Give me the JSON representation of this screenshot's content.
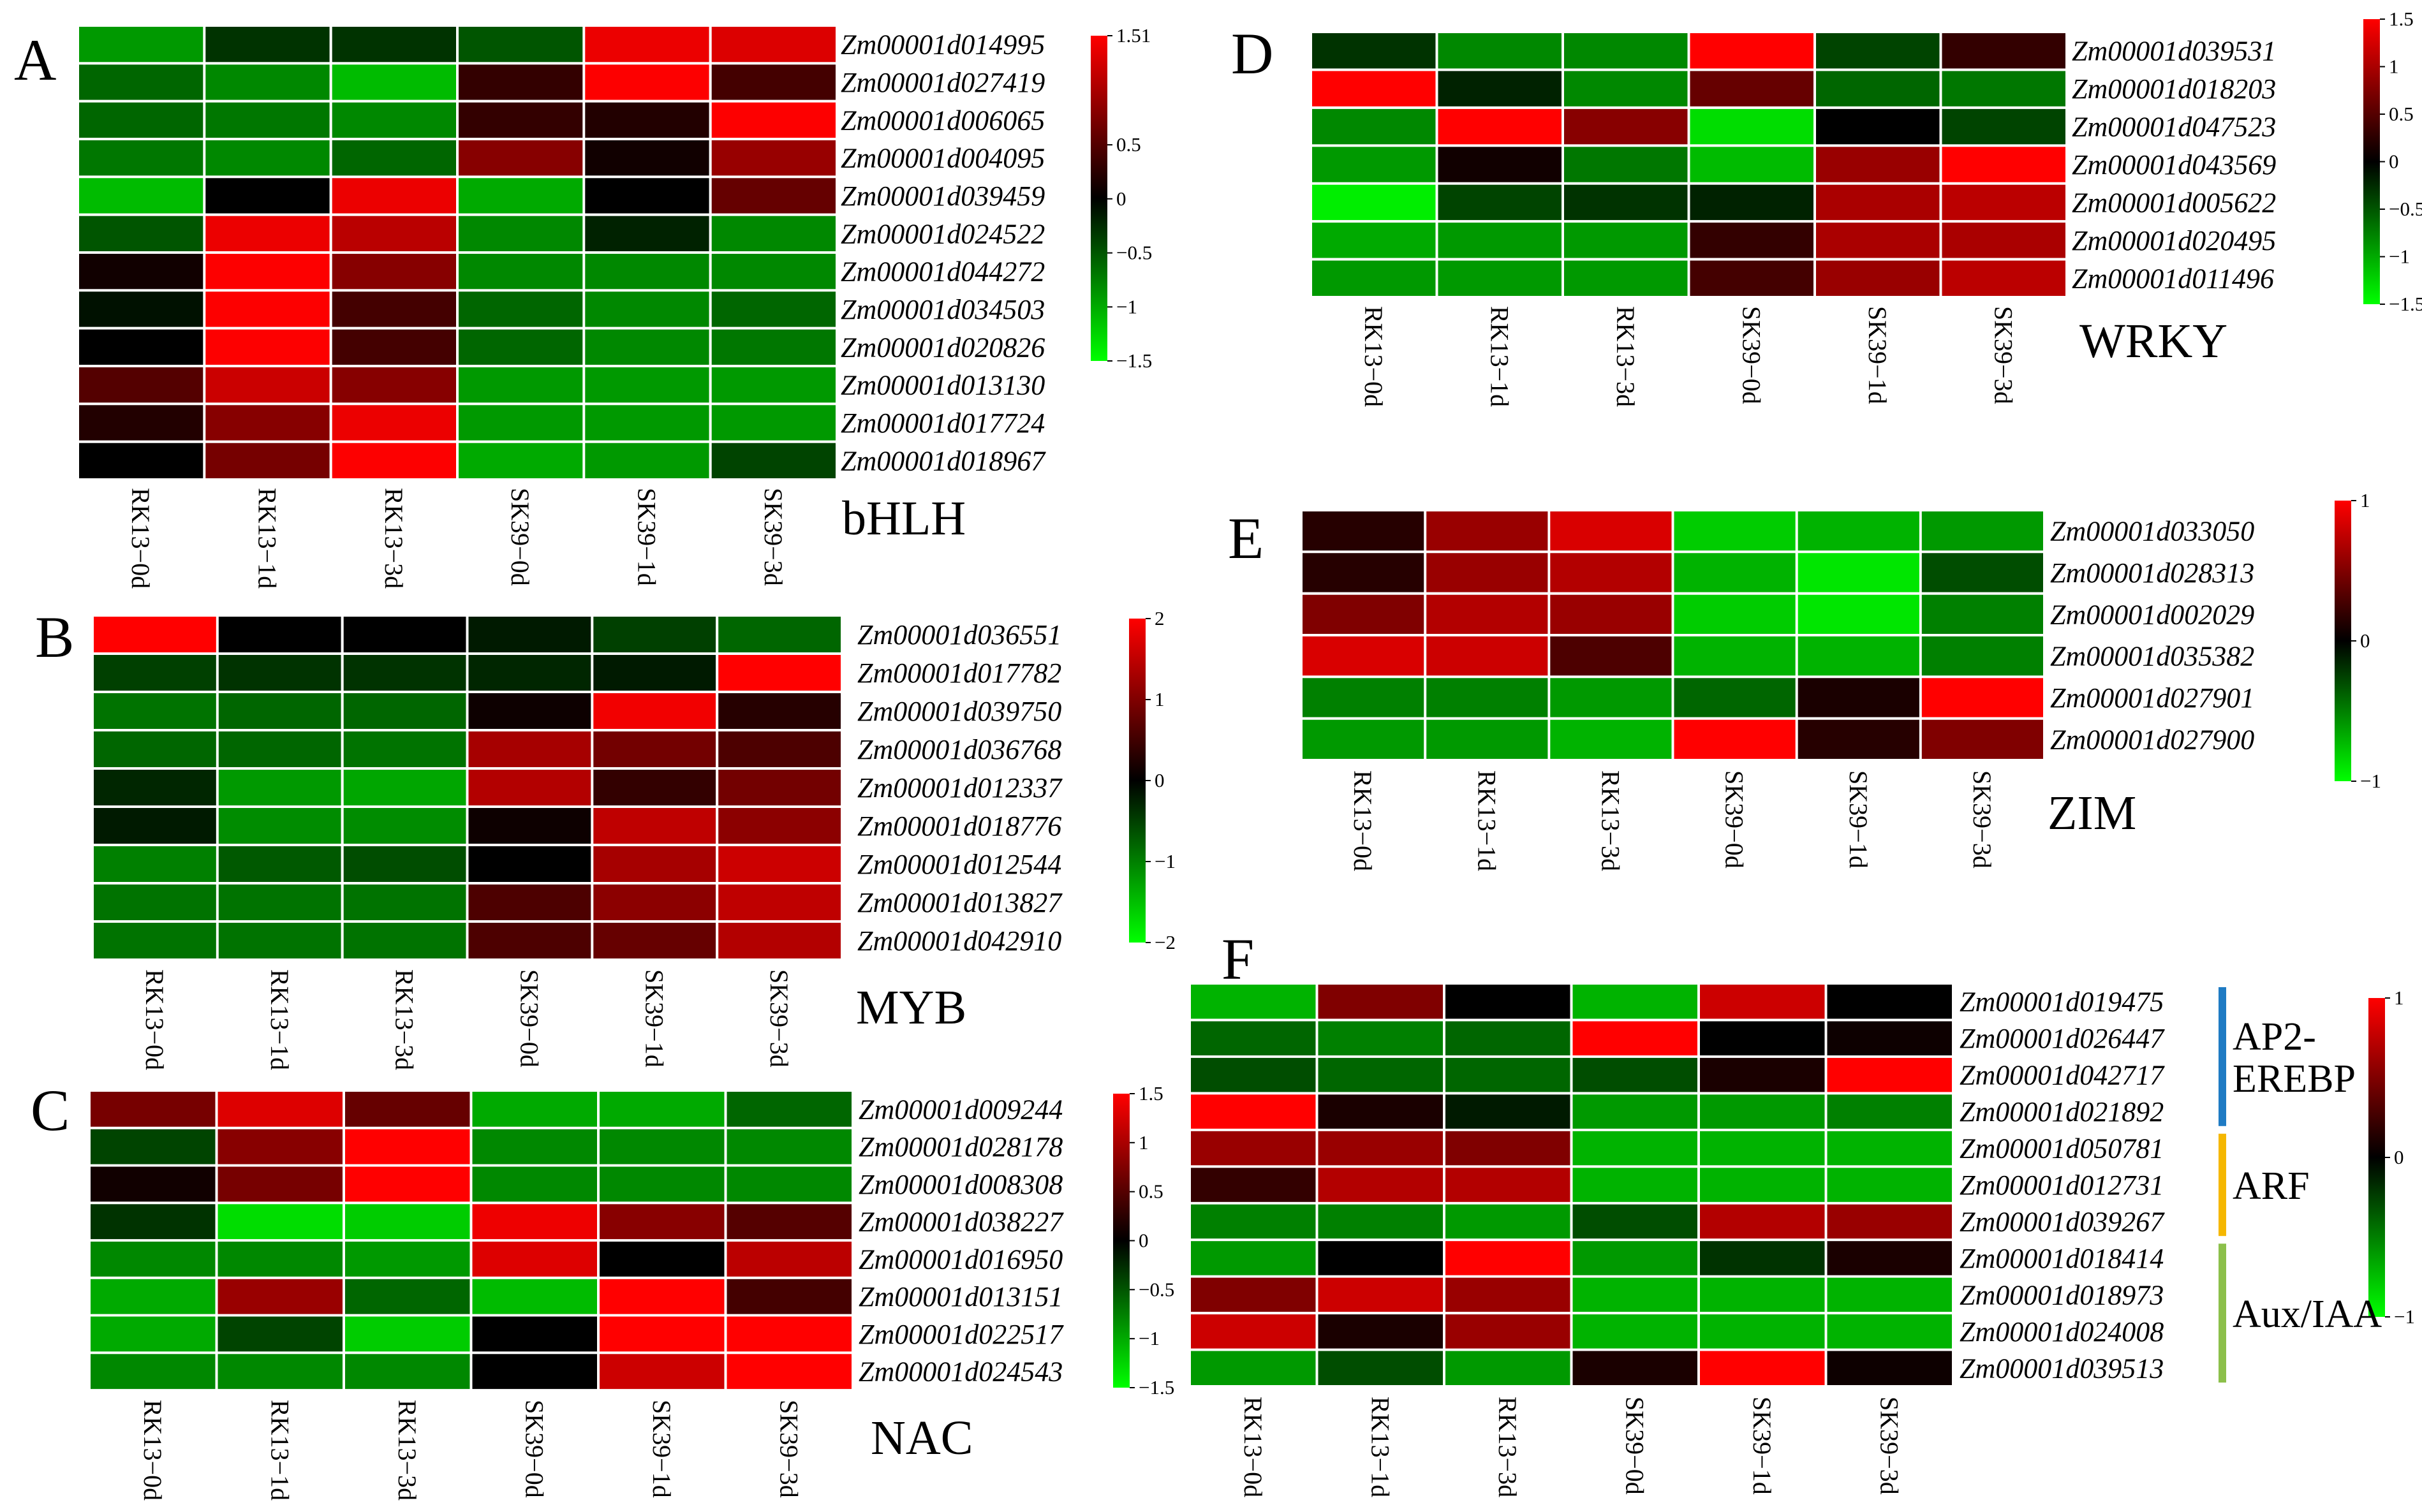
{
  "figure": {
    "samples": [
      "RK13−0d",
      "RK13−1d",
      "RK13−3d",
      "SK39−0d",
      "SK39−1d",
      "SK39−3d"
    ],
    "colors": {
      "low": "#00ff00",
      "mid": "#000000",
      "high": "#ff0000",
      "grid": "#ffffff"
    }
  },
  "chart_data": [
    {
      "type": "heatmap",
      "panel": "A",
      "title": "bHLH",
      "columns": [
        "RK13−0d",
        "RK13−1d",
        "RK13−3d",
        "SK39−0d",
        "SK39−1d",
        "SK39−3d"
      ],
      "rows": [
        "Zm00001d014995",
        "Zm00001d027419",
        "Zm00001d006065",
        "Zm00001d004095",
        "Zm00001d039459",
        "Zm00001d024522",
        "Zm00001d044272",
        "Zm00001d034503",
        "Zm00001d020826",
        "Zm00001d013130",
        "Zm00001d017724",
        "Zm00001d018967"
      ],
      "values": [
        [
          -0.9,
          -0.3,
          -0.3,
          -0.5,
          1.4,
          1.3
        ],
        [
          -0.6,
          -0.8,
          -1.1,
          0.3,
          1.5,
          0.4
        ],
        [
          -0.6,
          -0.7,
          -0.8,
          0.3,
          0.2,
          1.5
        ],
        [
          -0.7,
          -0.8,
          -0.6,
          0.8,
          0.1,
          0.9
        ],
        [
          -1.1,
          0.0,
          1.4,
          -1.0,
          0.0,
          0.6
        ],
        [
          -0.5,
          1.4,
          1.1,
          -0.8,
          -0.2,
          -0.8
        ],
        [
          0.1,
          1.5,
          0.8,
          -0.8,
          -0.8,
          -0.8
        ],
        [
          -0.1,
          1.5,
          0.4,
          -0.6,
          -0.8,
          -0.6
        ],
        [
          0.0,
          1.5,
          0.4,
          -0.6,
          -0.8,
          -0.7
        ],
        [
          0.5,
          1.2,
          0.8,
          -0.9,
          -0.9,
          -0.9
        ],
        [
          0.2,
          0.8,
          1.4,
          -0.9,
          -0.9,
          -0.9
        ],
        [
          0.0,
          0.7,
          1.5,
          -1.0,
          -0.9,
          -0.4
        ]
      ],
      "scale": {
        "min": -1.5,
        "max": 1.51,
        "ticks": [
          1.51,
          0.5,
          0,
          -0.5,
          -1,
          -1.5
        ],
        "tick_labels": [
          "1.51",
          "0.5",
          "0",
          "−0.5",
          "−1",
          "−1.5"
        ]
      }
    },
    {
      "type": "heatmap",
      "panel": "B",
      "title": "MYB",
      "columns": [
        "RK13−0d",
        "RK13−1d",
        "RK13−3d",
        "SK39−0d",
        "SK39−1d",
        "SK39−3d"
      ],
      "rows": [
        "Zm00001d036551",
        "Zm00001d017782",
        "Zm00001d039750",
        "Zm00001d036768",
        "Zm00001d012337",
        "Zm00001d018776",
        "Zm00001d012544",
        "Zm00001d013827",
        "Zm00001d042910"
      ],
      "values": [
        [
          2.0,
          0.0,
          0.0,
          -0.2,
          -0.5,
          -0.8
        ],
        [
          -0.5,
          -0.4,
          -0.4,
          -0.3,
          -0.2,
          2.0
        ],
        [
          -0.9,
          -0.8,
          -0.8,
          0.1,
          1.9,
          0.3
        ],
        [
          -0.8,
          -0.8,
          -0.9,
          1.3,
          0.9,
          0.6
        ],
        [
          -0.3,
          -1.2,
          -1.3,
          1.4,
          0.4,
          0.9
        ],
        [
          -0.2,
          -1.1,
          -1.1,
          0.1,
          1.5,
          1.1
        ],
        [
          -1.0,
          -0.7,
          -0.6,
          0.0,
          1.3,
          1.6
        ],
        [
          -0.9,
          -0.9,
          -0.9,
          0.6,
          1.1,
          1.5
        ],
        [
          -0.9,
          -0.9,
          -0.9,
          0.6,
          0.8,
          1.4
        ]
      ],
      "scale": {
        "min": -2,
        "max": 2,
        "ticks": [
          2,
          1,
          0,
          -1,
          -2
        ],
        "tick_labels": [
          "2",
          "1",
          "0",
          "−1",
          "−2"
        ]
      }
    },
    {
      "type": "heatmap",
      "panel": "C",
      "title": "NAC",
      "columns": [
        "RK13−0d",
        "RK13−1d",
        "RK13−3d",
        "SK39−0d",
        "SK39−1d",
        "SK39−3d"
      ],
      "rows": [
        "Zm00001d009244",
        "Zm00001d028178",
        "Zm00001d008308",
        "Zm00001d038227",
        "Zm00001d016950",
        "Zm00001d013151",
        "Zm00001d022517",
        "Zm00001d024543"
      ],
      "values": [
        [
          0.7,
          1.3,
          0.6,
          -1.0,
          -1.0,
          -0.6
        ],
        [
          -0.4,
          0.8,
          1.5,
          -0.8,
          -0.8,
          -0.8
        ],
        [
          0.1,
          0.7,
          1.5,
          -0.8,
          -0.8,
          -0.8
        ],
        [
          -0.3,
          -1.3,
          -1.2,
          1.4,
          0.8,
          0.5
        ],
        [
          -0.8,
          -0.8,
          -0.9,
          1.3,
          0.0,
          1.1
        ],
        [
          -1.0,
          0.9,
          -0.6,
          -1.1,
          1.5,
          0.4
        ],
        [
          -1.0,
          -0.4,
          -1.2,
          0.0,
          1.5,
          1.5
        ],
        [
          -0.8,
          -0.8,
          -0.8,
          0.0,
          1.2,
          1.6
        ]
      ],
      "scale": {
        "min": -1.5,
        "max": 1.5,
        "ticks": [
          1.5,
          1,
          0.5,
          0,
          -0.5,
          -1,
          -1.5
        ],
        "tick_labels": [
          "1.5",
          "1",
          "0.5",
          "0",
          "−0.5",
          "−1",
          "−1.5"
        ]
      }
    },
    {
      "type": "heatmap",
      "panel": "D",
      "title": "WRKY",
      "columns": [
        "RK13−0d",
        "RK13−1d",
        "RK13−3d",
        "SK39−0d",
        "SK39−1d",
        "SK39−3d"
      ],
      "rows": [
        "Zm00001d039531",
        "Zm00001d018203",
        "Zm00001d047523",
        "Zm00001d043569",
        "Zm00001d005622",
        "Zm00001d020495",
        "Zm00001d011496"
      ],
      "values": [
        [
          -0.3,
          -0.8,
          -0.8,
          1.5,
          -0.4,
          0.3
        ],
        [
          1.5,
          -0.2,
          -0.8,
          0.6,
          -0.6,
          -0.7
        ],
        [
          -0.8,
          1.5,
          0.8,
          -1.3,
          0.0,
          -0.4
        ],
        [
          -0.9,
          0.1,
          -0.7,
          -1.1,
          0.9,
          1.5
        ],
        [
          -1.4,
          -0.4,
          -0.3,
          -0.2,
          1.0,
          1.1
        ],
        [
          -1.0,
          -0.9,
          -0.9,
          0.3,
          1.0,
          1.0
        ],
        [
          -0.9,
          -0.9,
          -0.9,
          0.4,
          0.9,
          1.1
        ]
      ],
      "scale": {
        "min": -1.5,
        "max": 1.5,
        "ticks": [
          1.5,
          1,
          0.5,
          0,
          -0.5,
          -1,
          -1.5
        ],
        "tick_labels": [
          "1.5",
          "1",
          "0.5",
          "0",
          "−0.5",
          "−1",
          "−1.5"
        ]
      }
    },
    {
      "type": "heatmap",
      "panel": "E",
      "title": "ZIM",
      "columns": [
        "RK13−0d",
        "RK13−1d",
        "RK13−3d",
        "SK39−0d",
        "SK39−1d",
        "SK39−3d"
      ],
      "rows": [
        "Zm00001d033050",
        "Zm00001d028313",
        "Zm00001d002029",
        "Zm00001d035382",
        "Zm00001d027901",
        "Zm00001d027900"
      ],
      "values": [
        [
          0.15,
          0.6,
          0.85,
          -0.8,
          -0.7,
          -0.6
        ],
        [
          0.15,
          0.6,
          0.7,
          -0.7,
          -0.9,
          -0.3
        ],
        [
          0.5,
          0.7,
          0.6,
          -0.8,
          -0.9,
          -0.5
        ],
        [
          0.85,
          0.8,
          0.3,
          -0.7,
          -0.7,
          -0.5
        ],
        [
          -0.5,
          -0.5,
          -0.6,
          -0.4,
          0.1,
          1.0
        ],
        [
          -0.6,
          -0.6,
          -0.7,
          1.0,
          0.15,
          0.5
        ]
      ],
      "scale": {
        "min": -1,
        "max": 1,
        "ticks": [
          1,
          0,
          -1
        ],
        "tick_labels": [
          "1",
          "0",
          "−1"
        ]
      }
    },
    {
      "type": "heatmap",
      "panel": "F",
      "title": "",
      "columns": [
        "RK13−0d",
        "RK13−1d",
        "RK13−3d",
        "SK39−0d",
        "SK39−1d",
        "SK39−3d"
      ],
      "rows": [
        "Zm00001d019475",
        "Zm00001d026447",
        "Zm00001d042717",
        "Zm00001d021892",
        "Zm00001d050781",
        "Zm00001d012731",
        "Zm00001d039267",
        "Zm00001d018414",
        "Zm00001d018973",
        "Zm00001d024008",
        "Zm00001d039513"
      ],
      "values": [
        [
          -0.7,
          0.5,
          0.0,
          -0.7,
          0.8,
          0.0
        ],
        [
          -0.4,
          -0.5,
          -0.4,
          1.0,
          0.0,
          0.05
        ],
        [
          -0.3,
          -0.4,
          -0.4,
          -0.3,
          0.1,
          1.0
        ],
        [
          1.0,
          0.1,
          -0.1,
          -0.6,
          -0.6,
          -0.5
        ],
        [
          0.6,
          0.6,
          0.5,
          -0.7,
          -0.7,
          -0.7
        ],
        [
          0.2,
          0.7,
          0.7,
          -0.7,
          -0.7,
          -0.7
        ],
        [
          -0.5,
          -0.5,
          -0.6,
          -0.3,
          0.7,
          0.6
        ],
        [
          -0.6,
          0.0,
          1.0,
          -0.6,
          -0.2,
          0.1
        ],
        [
          0.5,
          0.8,
          0.6,
          -0.7,
          -0.7,
          -0.7
        ],
        [
          0.8,
          0.1,
          0.6,
          -0.7,
          -0.7,
          -0.7
        ],
        [
          -0.6,
          -0.3,
          -0.6,
          0.1,
          1.0,
          0.05
        ]
      ],
      "row_groups": [
        {
          "label": "AP2-EREBP",
          "lines": [
            "AP2-",
            "EREBP"
          ],
          "color": "#1f7bc4",
          "start": 0,
          "end": 3
        },
        {
          "label": "ARF",
          "lines": [
            "ARF"
          ],
          "color": "#f5b700",
          "start": 4,
          "end": 6
        },
        {
          "label": "Aux/IAA",
          "lines": [
            "Aux/IAA"
          ],
          "color": "#8cc04b",
          "start": 7,
          "end": 10
        }
      ],
      "scale": {
        "min": -1,
        "max": 1,
        "ticks": [
          1,
          0,
          -1
        ],
        "tick_labels": [
          "1",
          "0",
          "−1"
        ]
      }
    }
  ]
}
